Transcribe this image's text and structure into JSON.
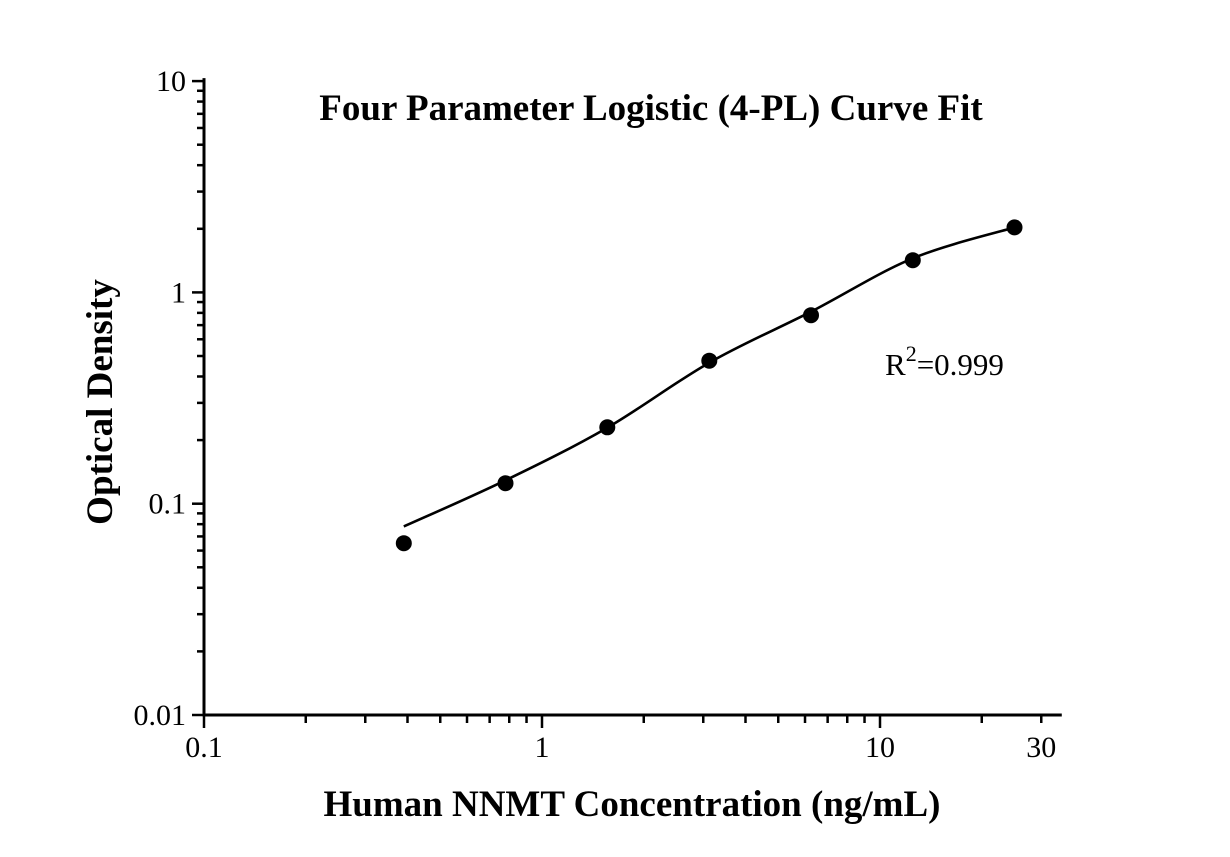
{
  "figure": {
    "background_color": "#ffffff",
    "foreground_color": "#000000",
    "annotation": {
      "base": "R",
      "sup": "2",
      "rest": "=0.999"
    }
  },
  "chart_data": {
    "type": "scatter",
    "title": "Four Parameter Logistic (4-PL) Curve Fit",
    "xlabel": "Human NNMT Concentration (ng/mL)",
    "ylabel": "Optical Density",
    "x_scale": "log",
    "y_scale": "log",
    "xlim": [
      0.1,
      34.5
    ],
    "ylim": [
      0.01,
      10
    ],
    "grid": false,
    "legend": false,
    "x_labeled_ticks": [
      {
        "value": 0.1,
        "label": "0.1"
      },
      {
        "value": 1,
        "label": "1"
      },
      {
        "value": 10,
        "label": "10"
      },
      {
        "value": 30,
        "label": "30"
      }
    ],
    "x_major_tick_values": [
      0.1,
      1,
      10
    ],
    "y_labeled_ticks": [
      {
        "value": 0.01,
        "label": "0.01"
      },
      {
        "value": 0.1,
        "label": "0.1"
      },
      {
        "value": 1,
        "label": "1"
      },
      {
        "value": 10,
        "label": "10"
      }
    ],
    "series": [
      {
        "name": "standard-points",
        "marker": "circle",
        "marker_radius": 8,
        "color": "#000000",
        "points": [
          {
            "x": 0.39,
            "y": 0.065
          },
          {
            "x": 0.78,
            "y": 0.125
          },
          {
            "x": 1.56,
            "y": 0.23
          },
          {
            "x": 3.125,
            "y": 0.475
          },
          {
            "x": 6.25,
            "y": 0.78
          },
          {
            "x": 12.5,
            "y": 1.42
          },
          {
            "x": 25,
            "y": 2.03
          }
        ]
      }
    ],
    "fit_curve": {
      "name": "4-PL-fit-line",
      "color": "#000000",
      "points": [
        [
          0.39,
          0.078
        ],
        [
          0.78,
          0.129
        ],
        [
          1.56,
          0.229
        ],
        [
          3.125,
          0.465
        ],
        [
          6.25,
          0.81
        ],
        [
          12.5,
          1.45
        ],
        [
          25,
          2.03
        ]
      ]
    },
    "r_squared": "0.999"
  }
}
